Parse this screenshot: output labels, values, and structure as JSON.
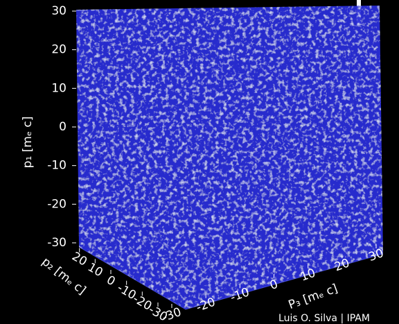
{
  "chart_data": {
    "type": "volume",
    "zlabel": "p₁ [mₑ c]",
    "zlim": [
      -30,
      30
    ],
    "zticks": [
      30,
      20,
      10,
      0,
      -10,
      -20,
      -30
    ],
    "ylabel": "p₂ [mₑ c]",
    "ylim": [
      -30,
      30
    ],
    "yticks": [
      20,
      10,
      0,
      -10,
      -20,
      -30
    ],
    "xlabel": "P₃ [mₑ c]",
    "xlim": [
      -30,
      30
    ],
    "xticks": [
      -30,
      -20,
      -10,
      0,
      10,
      20,
      30
    ],
    "color": "#2a2fd8",
    "annotation": "Luis O. Silva | IPAM"
  }
}
